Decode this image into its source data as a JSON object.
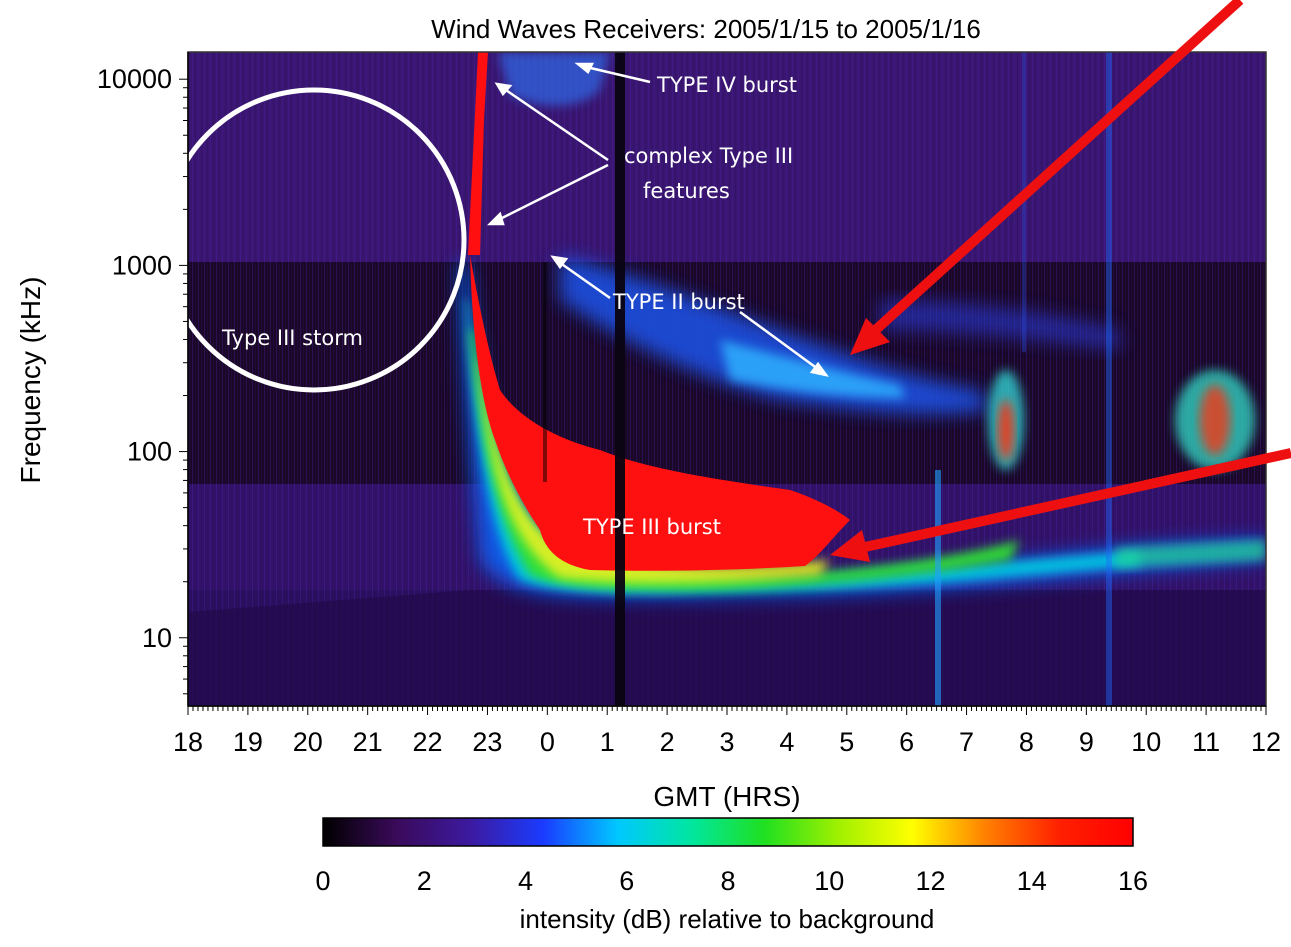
{
  "chart_data": {
    "type": "heatmap",
    "title": "Wind Waves Receivers: 2005/1/15 to 2005/1/16",
    "xlabel": "GMT (HRS)",
    "ylabel": "Frequency (kHz)",
    "x_ticks": [
      "18",
      "19",
      "20",
      "21",
      "22",
      "23",
      "0",
      "1",
      "2",
      "3",
      "4",
      "5",
      "6",
      "7",
      "8",
      "9",
      "10",
      "11",
      "12"
    ],
    "y_ticks": [
      10,
      100,
      1000,
      10000
    ],
    "y_scale": "log",
    "ylim": [
      4.3,
      14000
    ],
    "xlim_hours_from_18": [
      0,
      18
    ],
    "colorbar": {
      "label": "intensity (dB) relative to background",
      "ticks": [
        0,
        2,
        4,
        6,
        8,
        10,
        12,
        14,
        16
      ],
      "range": [
        0,
        16
      ],
      "colors": [
        "#000000",
        "#3a0a5a",
        "#3c1aa0",
        "#1a3cff",
        "#00c8ff",
        "#00e6a0",
        "#20e020",
        "#a0f000",
        "#ffff00",
        "#ff8000",
        "#ff2000",
        "#ff0000"
      ]
    },
    "annotations": [
      {
        "text": "TYPE IV burst",
        "x_hour": 1.0,
        "y_khz": 13000
      },
      {
        "text": "complex Type III",
        "x_hour": 23.3,
        "y_khz": 1400
      },
      {
        "text": "features",
        "x_hour": 23.3,
        "y_khz": 1400
      },
      {
        "text": "TYPE II burst",
        "x_hour": 4.5,
        "y_khz": 210
      },
      {
        "text": "Type III storm",
        "x_hour": 20.0,
        "y_khz": 1000
      },
      {
        "text": "TYPE III burst",
        "x_hour": 2.5,
        "y_khz": 35
      }
    ]
  }
}
